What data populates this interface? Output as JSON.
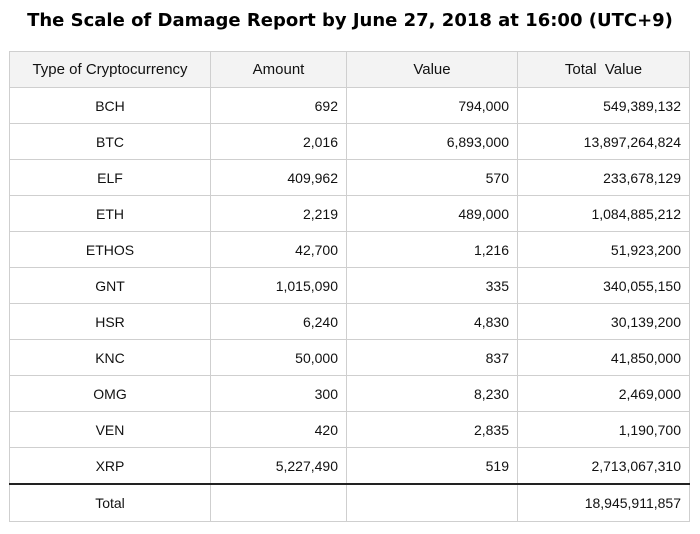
{
  "title": "The Scale of Damage Report by June 27, 2018 at 16:00 (UTC+9)",
  "table": {
    "headers": [
      "Type of Cryptocurrency",
      "Amount",
      "Value",
      "Total  Value"
    ],
    "rows": [
      [
        "BCH",
        "692",
        "794,000",
        "549,389,132"
      ],
      [
        "BTC",
        "2,016",
        "6,893,000",
        "13,897,264,824"
      ],
      [
        "ELF",
        "409,962",
        "570",
        "233,678,129"
      ],
      [
        "ETH",
        "2,219",
        "489,000",
        "1,084,885,212"
      ],
      [
        "ETHOS",
        "42,700",
        "1,216",
        "51,923,200"
      ],
      [
        "GNT",
        "1,015,090",
        "335",
        "340,055,150"
      ],
      [
        "HSR",
        "6,240",
        "4,830",
        "30,139,200"
      ],
      [
        "KNC",
        "50,000",
        "837",
        "41,850,000"
      ],
      [
        "OMG",
        "300",
        "8,230",
        "2,469,000"
      ],
      [
        "VEN",
        "420",
        "2,835",
        "1,190,700"
      ],
      [
        "XRP",
        "5,227,490",
        "519",
        "2,713,067,310"
      ]
    ],
    "total": {
      "label": "Total",
      "amount": "",
      "value": "",
      "total_value": "18,945,911,857"
    }
  }
}
